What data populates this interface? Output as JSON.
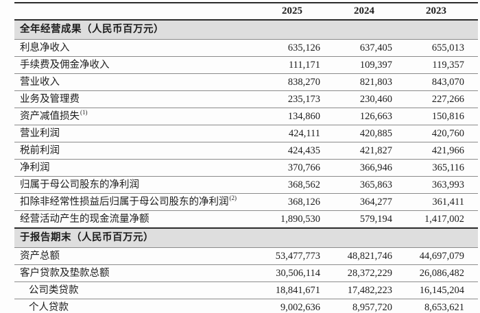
{
  "table": {
    "columns": [
      "2025",
      "2024",
      "2023"
    ],
    "sections": [
      {
        "header": "全年经营成果（人民币百万元）",
        "rows": [
          {
            "label": "利息净收入",
            "values": [
              "635,126",
              "637,405",
              "655,013"
            ]
          },
          {
            "label": "手续费及佣金净收入",
            "values": [
              "111,171",
              "109,397",
              "119,357"
            ]
          },
          {
            "label": "营业收入",
            "values": [
              "838,270",
              "821,803",
              "843,070"
            ]
          },
          {
            "label": "业务及管理费",
            "values": [
              "235,173",
              "230,460",
              "227,266"
            ]
          },
          {
            "label": "资产减值损失",
            "footnote": "(1)",
            "values": [
              "134,860",
              "126,663",
              "150,816"
            ]
          },
          {
            "label": "营业利润",
            "values": [
              "424,111",
              "420,885",
              "420,760"
            ]
          },
          {
            "label": "税前利润",
            "values": [
              "424,435",
              "421,827",
              "421,966"
            ]
          },
          {
            "label": "净利润",
            "values": [
              "370,766",
              "366,946",
              "365,116"
            ]
          },
          {
            "label": "归属于母公司股东的净利润",
            "values": [
              "368,562",
              "365,863",
              "363,993"
            ]
          },
          {
            "label": "扣除非经常性损益后归属于母公司股东的净利润",
            "footnote": "(2)",
            "values": [
              "368,126",
              "364,277",
              "361,411"
            ]
          },
          {
            "label": "经营活动产生的现金流量净额",
            "values": [
              "1,890,530",
              "579,194",
              "1,417,002"
            ]
          }
        ]
      },
      {
        "header": "于报告期末（人民币百万元）",
        "rows": [
          {
            "label": "资产总额",
            "values": [
              "53,477,773",
              "48,821,746",
              "44,697,079"
            ]
          },
          {
            "label": "客户贷款及垫款总额",
            "values": [
              "30,506,114",
              "28,372,229",
              "26,086,482"
            ]
          },
          {
            "label": "公司类贷款",
            "indent": true,
            "values": [
              "18,841,671",
              "17,482,223",
              "16,145,204"
            ]
          },
          {
            "label": "个人贷款",
            "indent": true,
            "values": [
              "9,002,636",
              "8,957,720",
              "8,653,621"
            ]
          }
        ]
      }
    ]
  }
}
